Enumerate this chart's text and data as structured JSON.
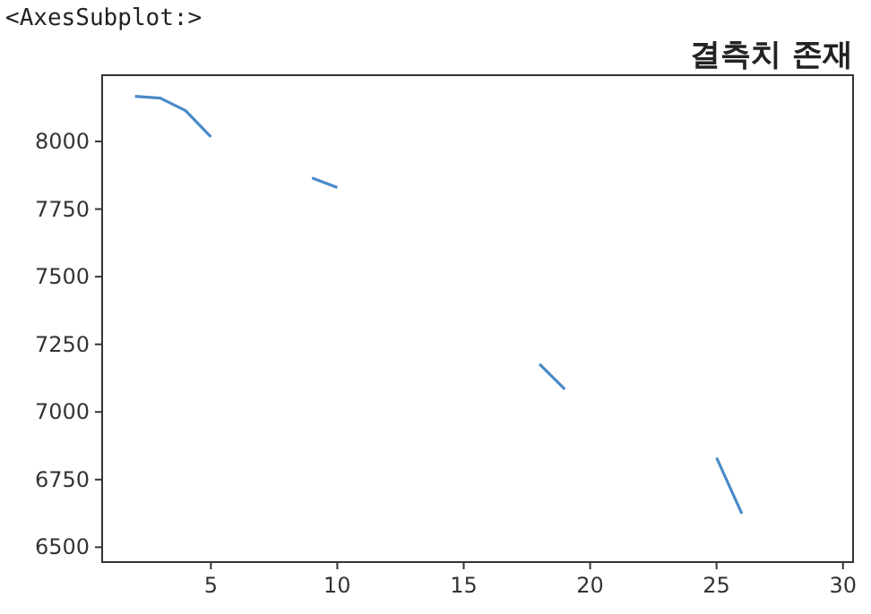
{
  "chart_data": {
    "type": "line",
    "title": "결측치 존재",
    "annotations": [
      "<AxesSubplot:>"
    ],
    "x": [
      2,
      3,
      4,
      5,
      9,
      10,
      18,
      19,
      25,
      26
    ],
    "series": [
      {
        "color": "#4a8ac8",
        "values": [
          8167,
          8160,
          8114,
          8017,
          7865,
          7830,
          7177,
          7084,
          6831,
          6624
        ]
      }
    ],
    "xlim": [
      0.7,
      30.4
    ],
    "xticks": [
      5,
      10,
      15,
      20,
      25,
      30
    ],
    "ylim": [
      6445,
      8245
    ],
    "yticks": [
      6500,
      6750,
      7000,
      7250,
      7500,
      7750,
      8000
    ],
    "grid": false
  }
}
